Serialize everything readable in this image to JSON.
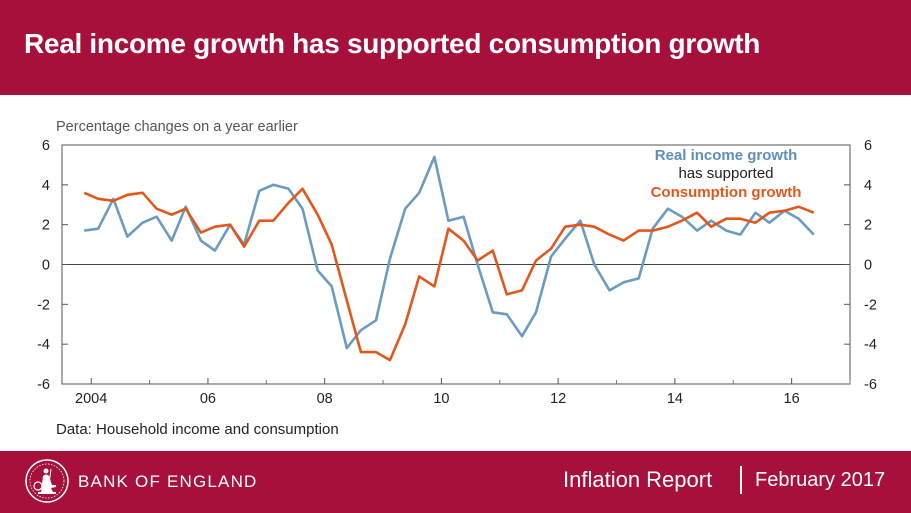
{
  "header": {
    "title": "Real income growth has supported consumption growth"
  },
  "footer": {
    "org": "BANK OF ENGLAND",
    "report": "Inflation Report",
    "date": "February 2017"
  },
  "source": "Data:  Household income and consumption",
  "colors": {
    "brand": "#a8103c",
    "income": "#6a9bc3",
    "consumption": "#e2571e"
  },
  "chart_data": {
    "type": "line",
    "subtitle": "Percentage changes on a year earlier",
    "ylim": [
      -6,
      6
    ],
    "yticks": [
      6,
      4,
      2,
      0,
      -2,
      -4,
      -6
    ],
    "xlim": [
      2003.5,
      2017.0
    ],
    "xticks": [
      {
        "value": 2004,
        "label": "2004"
      },
      {
        "value": 2006,
        "label": "06"
      },
      {
        "value": 2008,
        "label": "08"
      },
      {
        "value": 2010,
        "label": "10"
      },
      {
        "value": 2012,
        "label": "12"
      },
      {
        "value": 2014,
        "label": "14"
      },
      {
        "value": 2016,
        "label": "16"
      }
    ],
    "annotation": {
      "line1": "Real income growth",
      "line2": "has supported",
      "line3": "Consumption growth"
    },
    "series": [
      {
        "name": "Real income growth",
        "color": "#6a9bc3",
        "x": [
          2003.88,
          2004.12,
          2004.38,
          2004.62,
          2004.88,
          2005.12,
          2005.38,
          2005.62,
          2005.88,
          2006.12,
          2006.38,
          2006.62,
          2006.88,
          2007.12,
          2007.38,
          2007.62,
          2007.88,
          2008.12,
          2008.38,
          2008.62,
          2008.88,
          2009.12,
          2009.38,
          2009.62,
          2009.88,
          2010.12,
          2010.38,
          2010.62,
          2010.88,
          2011.12,
          2011.38,
          2011.62,
          2011.88,
          2012.12,
          2012.38,
          2012.62,
          2012.88,
          2013.12,
          2013.38,
          2013.62,
          2013.88,
          2014.12,
          2014.38,
          2014.62,
          2014.88,
          2015.12,
          2015.38,
          2015.62,
          2015.88,
          2016.12,
          2016.38
        ],
        "y": [
          1.7,
          1.8,
          3.3,
          1.4,
          2.1,
          2.4,
          1.2,
          2.9,
          1.2,
          0.7,
          2.0,
          1.0,
          3.7,
          4.0,
          3.8,
          2.8,
          -0.3,
          -1.1,
          -4.2,
          -3.3,
          -2.8,
          0.3,
          2.8,
          3.6,
          5.4,
          2.2,
          2.4,
          0.0,
          -2.4,
          -2.5,
          -3.6,
          -2.4,
          0.4,
          1.3,
          2.2,
          0.0,
          -1.3,
          -0.9,
          -0.7,
          1.8,
          2.8,
          2.4,
          1.7,
          2.2,
          1.7,
          1.5,
          2.6,
          2.1,
          2.7,
          2.3,
          1.5
        ]
      },
      {
        "name": "Consumption growth",
        "color": "#e2571e",
        "x": [
          2003.88,
          2004.12,
          2004.38,
          2004.62,
          2004.88,
          2005.12,
          2005.38,
          2005.62,
          2005.88,
          2006.12,
          2006.38,
          2006.62,
          2006.88,
          2007.12,
          2007.38,
          2007.62,
          2007.88,
          2008.12,
          2008.38,
          2008.62,
          2008.88,
          2009.12,
          2009.38,
          2009.62,
          2009.88,
          2010.12,
          2010.38,
          2010.62,
          2010.88,
          2011.12,
          2011.38,
          2011.62,
          2011.88,
          2012.12,
          2012.38,
          2012.62,
          2012.88,
          2013.12,
          2013.38,
          2013.62,
          2013.88,
          2014.12,
          2014.38,
          2014.62,
          2014.88,
          2015.12,
          2015.38,
          2015.62,
          2015.88,
          2016.12,
          2016.38
        ],
        "y": [
          3.6,
          3.3,
          3.2,
          3.5,
          3.6,
          2.8,
          2.5,
          2.8,
          1.6,
          1.9,
          2.0,
          0.9,
          2.2,
          2.2,
          3.1,
          3.8,
          2.5,
          1.0,
          -1.8,
          -4.4,
          -4.4,
          -4.8,
          -3.0,
          -0.6,
          -1.1,
          1.8,
          1.2,
          0.2,
          0.7,
          -1.5,
          -1.3,
          0.2,
          0.8,
          1.9,
          2.0,
          1.9,
          1.5,
          1.2,
          1.7,
          1.7,
          1.9,
          2.2,
          2.6,
          1.9,
          2.3,
          2.3,
          2.1,
          2.6,
          2.7,
          2.9,
          2.6
        ]
      }
    ]
  }
}
